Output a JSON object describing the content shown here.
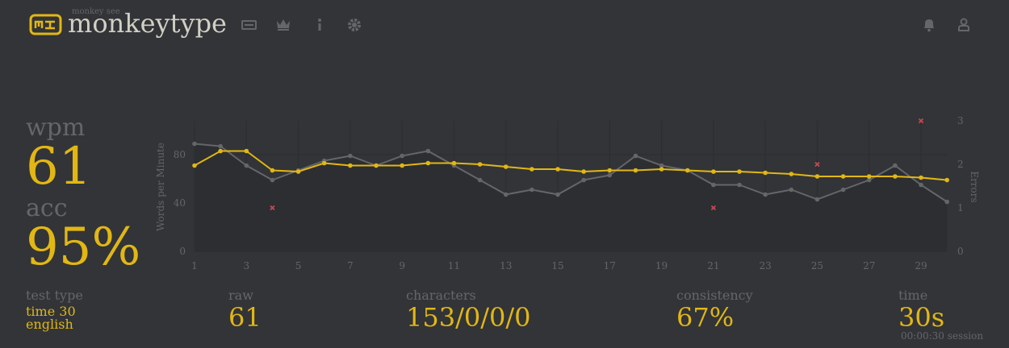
{
  "header": {
    "subtitle": "monkey see",
    "title": "monkeytype"
  },
  "stats": {
    "wpm_label": "wpm",
    "wpm": "61",
    "acc_label": "acc",
    "acc": "95%"
  },
  "details": {
    "test_type_label": "test type",
    "test_type": "time 30",
    "language": "english",
    "raw_label": "raw",
    "raw": "61",
    "characters_label": "characters",
    "characters": "153/0/0/0",
    "consistency_label": "consistency",
    "consistency": "67%",
    "time_label": "time",
    "time": "30s",
    "session": "00:00:30 session"
  },
  "chart_data": {
    "type": "line",
    "y_label": "Words per Minute",
    "y2_label": "Errors",
    "x": [
      1,
      2,
      3,
      4,
      5,
      6,
      7,
      8,
      9,
      10,
      11,
      12,
      13,
      14,
      15,
      16,
      17,
      18,
      19,
      20,
      21,
      22,
      23,
      24,
      25,
      26,
      27,
      28,
      29,
      30
    ],
    "xlim": [
      1,
      30
    ],
    "xticks": [
      1,
      3,
      5,
      7,
      9,
      11,
      13,
      15,
      17,
      19,
      21,
      23,
      25,
      27,
      29
    ],
    "ylim": [
      0,
      108
    ],
    "yticks": [
      0,
      40,
      80
    ],
    "y2lim": [
      0,
      3
    ],
    "y2ticks": [
      0,
      1,
      2,
      3
    ],
    "grid": true,
    "series": [
      {
        "color": "#646669",
        "area": true,
        "values": [
          89,
          87,
          71,
          59,
          67,
          75,
          79,
          71,
          79,
          83,
          71,
          59,
          47,
          51,
          47,
          59,
          63,
          79,
          71,
          67,
          55,
          55,
          47,
          51,
          43,
          51,
          59,
          71,
          55,
          41
        ]
      },
      {
        "color": "#e2b714",
        "values": [
          71,
          83,
          83,
          67,
          66,
          73,
          71,
          71,
          71,
          73,
          73,
          72,
          70,
          68,
          68,
          66,
          67,
          67,
          68,
          67,
          66,
          66,
          65,
          64,
          62,
          62,
          62,
          62,
          61,
          59
        ]
      },
      {
        "color": "#ca4754",
        "axis": "y2",
        "mark": "cross",
        "values": [
          null,
          null,
          null,
          1,
          null,
          null,
          null,
          null,
          null,
          null,
          null,
          null,
          null,
          null,
          null,
          null,
          null,
          null,
          null,
          null,
          1,
          null,
          null,
          null,
          2,
          null,
          null,
          null,
          3,
          null
        ]
      }
    ]
  }
}
